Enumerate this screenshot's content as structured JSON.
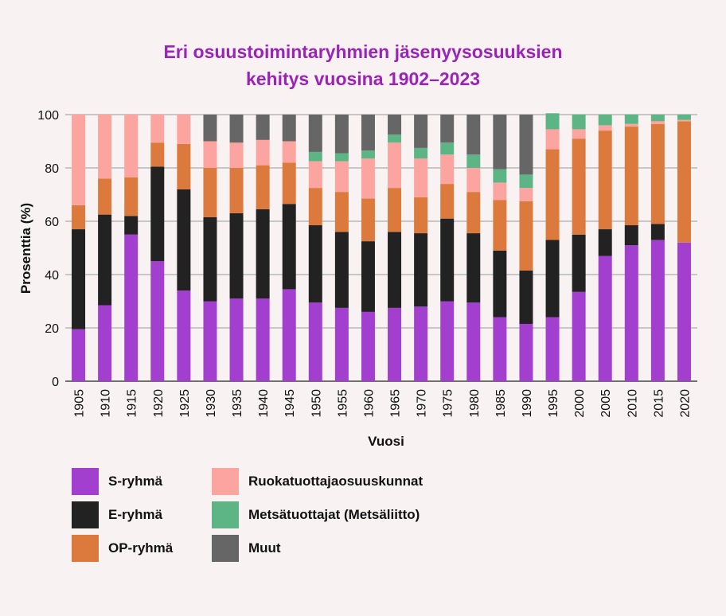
{
  "title_line1": "Eri osuustoimintaryhmien jäsenyysosuuksien",
  "title_line2": "kehitys vuosina 1902–2023",
  "chart_data": {
    "type": "bar",
    "stacked": true,
    "title": "Eri osuustoimintaryhmien jäsenyysosuuksien kehitys vuosina 1902–2023",
    "xlabel": "Vuosi",
    "ylabel": "Prosenttia (%)",
    "ylim": [
      0,
      100
    ],
    "yticks": [
      0,
      20,
      40,
      60,
      80,
      100
    ],
    "grid": true,
    "legend_position": "bottom",
    "categories": [
      "1905",
      "1910",
      "1915",
      "1920",
      "1925",
      "1930",
      "1935",
      "1940",
      "1945",
      "1950",
      "1955",
      "1960",
      "1965",
      "1970",
      "1975",
      "1980",
      "1985",
      "1990",
      "1995",
      "2000",
      "2005",
      "2010",
      "2015",
      "2020"
    ],
    "series": [
      {
        "name": "S-ryhmä",
        "color": "#a23fce",
        "values": [
          19.5,
          28.5,
          55,
          45,
          34,
          30,
          31,
          31,
          34.5,
          29.5,
          27.5,
          26,
          27.5,
          28,
          30,
          29.5,
          24,
          21.5,
          24,
          33.5,
          47,
          51,
          53,
          52
        ]
      },
      {
        "name": "E-ryhmä",
        "color": "#222222",
        "values": [
          37.5,
          34,
          7,
          35.5,
          38,
          31.5,
          32,
          33.5,
          32,
          29,
          28.5,
          26.5,
          28.5,
          27.5,
          31,
          26,
          25,
          20,
          29,
          21.5,
          10,
          7.5,
          6,
          0
        ]
      },
      {
        "name": "OP-ryhmä",
        "color": "#dc7a3e",
        "values": [
          9,
          13.5,
          14.5,
          9,
          17,
          18.5,
          17,
          16.5,
          15.5,
          14,
          15,
          16,
          16.5,
          13.5,
          13,
          15.5,
          19,
          26,
          34,
          36,
          37,
          37,
          37.5,
          45.5
        ]
      },
      {
        "name": "Ruokatuottajaosuuskunnat",
        "color": "#fca5a0",
        "values": [
          34,
          24,
          23.5,
          10.5,
          11,
          10,
          9.5,
          9.5,
          8,
          10,
          11.5,
          15,
          17,
          14.5,
          11,
          9,
          6.5,
          5,
          7.5,
          3.5,
          2,
          1,
          1,
          0.5
        ]
      },
      {
        "name": "Metsätuottajat (Metsäliitto)",
        "color": "#5db585",
        "values": [
          0,
          0,
          0,
          0,
          0,
          0,
          0,
          0,
          0,
          3.5,
          3,
          3,
          3,
          4,
          4.5,
          5,
          5,
          5,
          6,
          5.5,
          4,
          3.5,
          2.5,
          2
        ]
      },
      {
        "name": "Muut",
        "color": "#666666",
        "values": [
          0,
          0,
          0,
          0,
          0,
          10,
          10.5,
          9.5,
          10,
          14,
          14.5,
          13.5,
          7.5,
          12.5,
          10.5,
          15,
          20.5,
          22.5,
          0,
          0,
          0,
          0,
          0,
          0
        ]
      }
    ]
  }
}
